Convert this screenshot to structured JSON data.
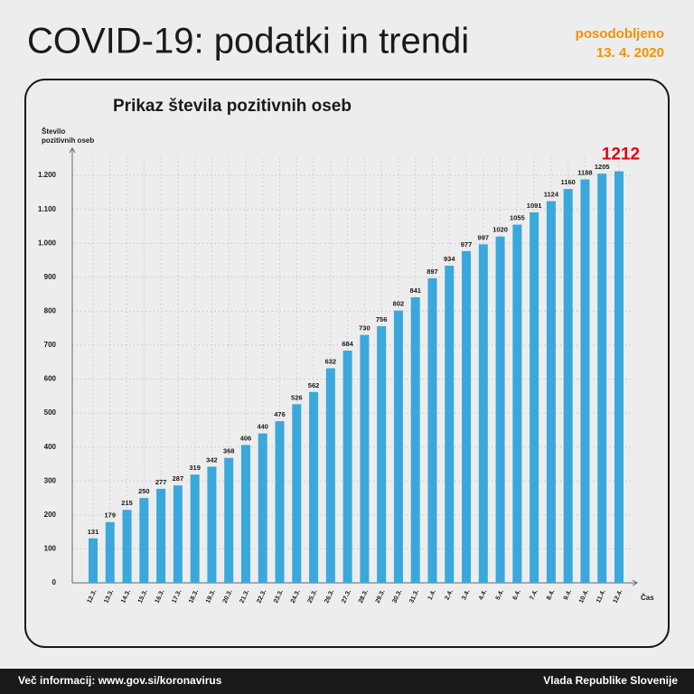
{
  "header": {
    "title": "COVID-19: podatki in trendi",
    "updated_label": "posodobljeno",
    "updated_date": "13. 4. 2020"
  },
  "chart_data": {
    "type": "bar",
    "title": "Prikaz števila pozitivnih oseb",
    "ylabel": [
      "Število",
      "pozitivnih oseb"
    ],
    "xlabel": "Čas",
    "categories": [
      "12.3.",
      "13.3.",
      "14.3.",
      "15.3.",
      "16.3.",
      "17.3.",
      "18.3.",
      "19.3.",
      "20.3.",
      "21.3.",
      "22.3.",
      "23.3.",
      "24.3.",
      "25.3.",
      "26.3.",
      "27.3.",
      "28.3.",
      "29.3.",
      "30.3.",
      "31.3.",
      "1.4.",
      "2.4.",
      "3.4.",
      "4.4.",
      "5.4.",
      "6.4.",
      "7.4.",
      "8.4.",
      "9.4.",
      "10.4.",
      "11.4.",
      "12.4."
    ],
    "values": [
      131,
      179,
      215,
      250,
      277,
      287,
      319,
      342,
      368,
      406,
      440,
      476,
      526,
      562,
      632,
      684,
      730,
      756,
      802,
      841,
      897,
      934,
      977,
      997,
      1020,
      1055,
      1091,
      1124,
      1160,
      1188,
      1205,
      1212
    ],
    "color": "#3aa8dc",
    "ylim": [
      0,
      1280
    ],
    "yticks": [
      0,
      100,
      200,
      300,
      400,
      500,
      600,
      700,
      800,
      900,
      {
        "value": 1000,
        "label": "1.000"
      },
      {
        "value": 1100,
        "label": "1.100"
      },
      {
        "value": 1200,
        "label": "1.200"
      }
    ],
    "grid": true
  },
  "footer": {
    "left": "Več informacij: www.gov.si/koronavirus",
    "right": "Vlada Republike Slovenije"
  }
}
